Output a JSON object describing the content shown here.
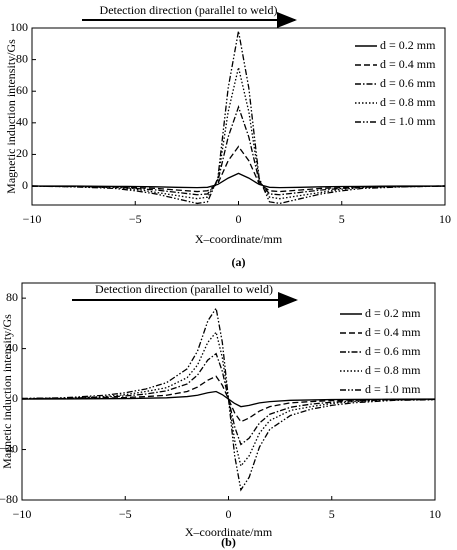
{
  "chart_data": [
    {
      "type": "line",
      "arrow_label": "Detection direction (parallel to weld)",
      "xlabel": "X–coordinate/mm",
      "ylabel": "Magnetic induction intensity/Gs",
      "panel_label": "(a)",
      "xlim": [
        -10,
        10
      ],
      "ylim": [
        -12,
        100
      ],
      "xticks": [
        {
          "value": -10,
          "label": "−10"
        },
        {
          "value": -5,
          "label": "−5"
        },
        0,
        5,
        10
      ],
      "yticks": [
        0,
        20,
        40,
        60,
        80,
        100
      ],
      "x": [
        -10,
        -8,
        -6,
        -5,
        -4,
        -3,
        -2,
        -1.5,
        -1,
        -0.5,
        0,
        0.5,
        1,
        1.5,
        2,
        3,
        4,
        5,
        6,
        8,
        10
      ],
      "series": [
        {
          "name": "d = 0.2 mm",
          "color": "#000000",
          "linestyle": "solid",
          "values": [
            0,
            0,
            -0.2,
            -0.3,
            -0.5,
            -0.8,
            -1,
            -0.8,
            1,
            5,
            8,
            5,
            1,
            -0.8,
            -1,
            -0.8,
            -0.5,
            -0.3,
            -0.2,
            0,
            0
          ]
        },
        {
          "name": "d = 0.4 mm",
          "color": "#000000",
          "linestyle": "dashed",
          "values": [
            0,
            -0.2,
            -0.5,
            -1,
            -1.5,
            -2.5,
            -3.5,
            -3,
            1.5,
            16,
            25,
            16,
            1.5,
            -3,
            -3.5,
            -2.5,
            -1.5,
            -1,
            -0.5,
            -0.2,
            0
          ]
        },
        {
          "name": "d = 0.6 mm",
          "color": "#000000",
          "linestyle": "dashdot",
          "values": [
            0,
            -0.3,
            -0.7,
            -1.5,
            -2.5,
            -4,
            -5.5,
            -5,
            3,
            31,
            50,
            31,
            3,
            -5,
            -5.5,
            -4,
            -2.5,
            -1.5,
            -0.7,
            -0.3,
            0
          ]
        },
        {
          "name": "d = 0.8 mm",
          "color": "#000000",
          "linestyle": "dotted",
          "values": [
            0,
            -0.4,
            -1,
            -2,
            -4,
            -6,
            -8,
            -7,
            4,
            47,
            75,
            47,
            4,
            -7,
            -8,
            -6,
            -4,
            -2,
            -1,
            -0.4,
            0
          ]
        },
        {
          "name": "d = 1.0 mm",
          "color": "#000000",
          "linestyle": "dashdotdot",
          "values": [
            0,
            -0.5,
            -1.5,
            -3,
            -5,
            -8,
            -11,
            -10,
            5,
            62,
            98,
            62,
            5,
            -10,
            -11,
            -8,
            -5,
            -3,
            -1.5,
            -0.5,
            0
          ]
        }
      ]
    },
    {
      "type": "line",
      "arrow_label": "Detection direction (parallel to weld)",
      "xlabel": "X–coordinate/mm",
      "ylabel": "Magnetic induction intensity/Gs",
      "panel_label": "(b)",
      "xlim": [
        -10,
        10
      ],
      "ylim": [
        -80,
        92
      ],
      "xticks": [
        {
          "value": -10,
          "label": "−10"
        },
        {
          "value": -5,
          "label": "−5"
        },
        0,
        5,
        10
      ],
      "yticks": [
        {
          "value": -80,
          "label": "−80"
        },
        {
          "value": -40,
          "label": "−40"
        },
        0,
        40,
        80
      ],
      "x": [
        -10,
        -8,
        -6,
        -5,
        -4,
        -3,
        -2,
        -1.5,
        -1,
        -0.6,
        -0.3,
        0,
        0.3,
        0.6,
        1,
        1.5,
        2,
        3,
        4,
        5,
        6,
        8,
        10
      ],
      "series": [
        {
          "name": "d = 0.2 mm",
          "color": "#000000",
          "linestyle": "solid",
          "values": [
            0,
            0.1,
            0.3,
            0.4,
            0.7,
            1,
            2,
            3,
            5,
            6,
            3.5,
            0,
            -3.5,
            -6,
            -5,
            -3,
            -2,
            -1,
            -0.7,
            -0.4,
            -0.3,
            -0.1,
            0
          ]
        },
        {
          "name": "d = 0.4 mm",
          "color": "#000000",
          "linestyle": "dashed",
          "values": [
            0.1,
            0.3,
            0.8,
            1.2,
            2,
            3,
            6,
            9.5,
            15,
            18,
            11,
            0,
            -11,
            -18,
            -15,
            -9.5,
            -6,
            -3,
            -2,
            -1.2,
            -0.8,
            -0.3,
            -0.1
          ]
        },
        {
          "name": "d = 0.6 mm",
          "color": "#000000",
          "linestyle": "dashdot",
          "values": [
            0.3,
            0.5,
            1.5,
            2.5,
            4,
            6.5,
            12,
            19,
            31,
            36,
            22,
            0,
            -22,
            -36,
            -31,
            -19,
            -12,
            -6.5,
            -4,
            -2.5,
            -1.5,
            -0.5,
            -0.3
          ]
        },
        {
          "name": "d = 0.8 mm",
          "color": "#000000",
          "linestyle": "dotted",
          "values": [
            0.4,
            0.7,
            2,
            3.5,
            6,
            9,
            17,
            27,
            45,
            53,
            33,
            0,
            -33,
            -53,
            -45,
            -27,
            -17,
            -9,
            -6,
            -3.5,
            -2,
            -0.7,
            -0.4
          ]
        },
        {
          "name": "d = 1.0 mm",
          "color": "#000000",
          "linestyle": "dashdotdot",
          "values": [
            0.5,
            1,
            3,
            5,
            8,
            13,
            24,
            38,
            62,
            72,
            45,
            0,
            -45,
            -72,
            -62,
            -38,
            -24,
            -13,
            -8,
            -5,
            -3,
            -1,
            -0.5
          ]
        }
      ]
    }
  ]
}
